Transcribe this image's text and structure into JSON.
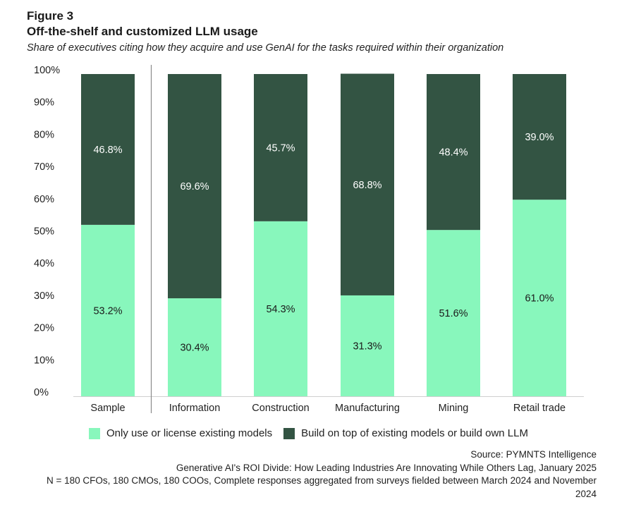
{
  "header": {
    "figure_label": "Figure 3",
    "title": "Off-the-shelf and customized LLM usage",
    "subtitle": "Share of executives citing how they acquire and use GenAI for the tasks required within their organization"
  },
  "chart_data": {
    "type": "bar",
    "stacked": true,
    "categories": [
      "Sample",
      "Information",
      "Construction",
      "Manufacturing",
      "Mining",
      "Retail trade"
    ],
    "series": [
      {
        "name": "Only use or license existing models",
        "color": "#88f7bc",
        "values": [
          53.2,
          30.4,
          54.3,
          31.3,
          51.6,
          61.0
        ],
        "labels": [
          "53.2%",
          "30.4%",
          "54.3%",
          "31.3%",
          "51.6%",
          "61.0%"
        ]
      },
      {
        "name": "Build on top of existing models or build own LLM",
        "color": "#335443",
        "values": [
          46.8,
          69.6,
          45.7,
          68.8,
          48.4,
          39.0
        ],
        "labels": [
          "46.8%",
          "69.6%",
          "45.7%",
          "68.8%",
          "48.4%",
          "39.0%"
        ]
      }
    ],
    "y_ticks": [
      "0%",
      "10%",
      "20%",
      "30%",
      "40%",
      "50%",
      "60%",
      "70%",
      "80%",
      "90%",
      "100%"
    ],
    "ylim": [
      0,
      100
    ],
    "grid": false,
    "legend_position": "bottom"
  },
  "legend": {
    "item1": "Only use or license existing models",
    "item2": "Build on top of existing models or build own LLM"
  },
  "colors": {
    "light": "#88f7bc",
    "dark": "#335443"
  },
  "source": {
    "line1": "Source: PYMNTS Intelligence",
    "line2": "Generative AI's ROI Divide: How Leading Industries Are Innovating While Others Lag, January 2025",
    "line3": "N = 180 CFOs, 180 CMOs, 180 COOs, Complete responses aggregated from surveys fielded between March 2024 and November 2024"
  }
}
